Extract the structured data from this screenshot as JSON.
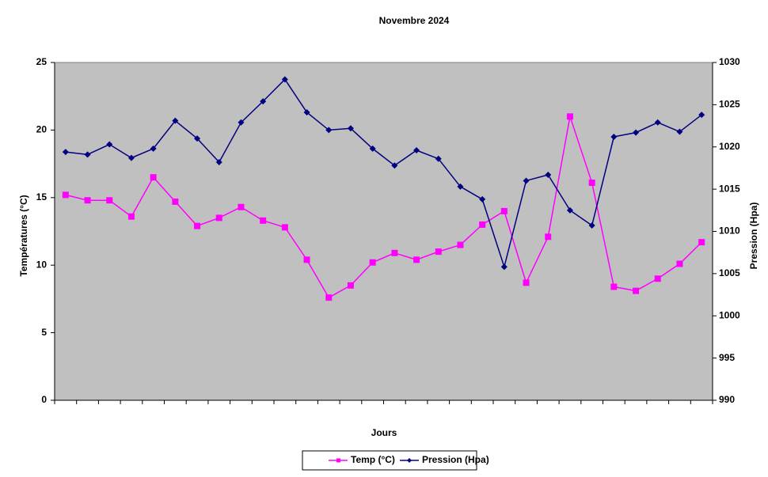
{
  "chart_data": {
    "type": "line",
    "title": "Novembre 2024",
    "x_label": "Jours",
    "y_label": "Températures (°C)",
    "y2_label": "Pression (Hpa)",
    "categories": [
      null,
      null,
      null,
      null,
      null,
      null,
      null,
      null,
      null,
      null,
      null,
      null,
      null,
      null,
      null,
      null,
      null,
      null,
      null,
      null,
      null,
      null,
      null,
      null,
      null,
      null,
      null,
      null,
      null,
      null
    ],
    "ylim": [
      0,
      25
    ],
    "yticks": [
      0,
      5,
      10,
      15,
      20,
      25
    ],
    "y2lim": [
      990,
      1030
    ],
    "y2ticks": [
      990,
      995,
      1000,
      1005,
      1010,
      1015,
      1020,
      1025,
      1030
    ],
    "legend": "bottom",
    "series": [
      {
        "name": "Temp (°C)",
        "color": "#ff00ff",
        "marker": "square",
        "values": [
          15.2,
          14.8,
          14.8,
          13.6,
          16.5,
          14.7,
          12.9,
          13.5,
          14.3,
          13.3,
          12.8,
          10.4,
          7.6,
          8.5,
          10.2,
          10.9,
          10.4,
          11.0,
          11.5,
          13.0,
          14.0,
          8.7,
          12.1,
          21.0,
          16.1,
          8.4,
          8.1,
          9.0,
          10.1,
          11.7
        ]
      },
      {
        "name": "Pression (Hpa)",
        "color": "#000080",
        "marker": "diamond",
        "axis": "y2",
        "values": [
          1019.4,
          1019.1,
          1020.3,
          1018.7,
          1019.8,
          1023.1,
          1021.0,
          1018.2,
          1022.9,
          1025.4,
          1028.0,
          1024.1,
          1022.0,
          1022.2,
          1019.8,
          1017.8,
          1019.6,
          1018.6,
          1015.3,
          1013.8,
          1005.8,
          1016.0,
          1016.7,
          1012.5,
          1010.7,
          1021.2,
          1021.7,
          1022.9,
          1021.8,
          1023.8
        ]
      }
    ]
  }
}
